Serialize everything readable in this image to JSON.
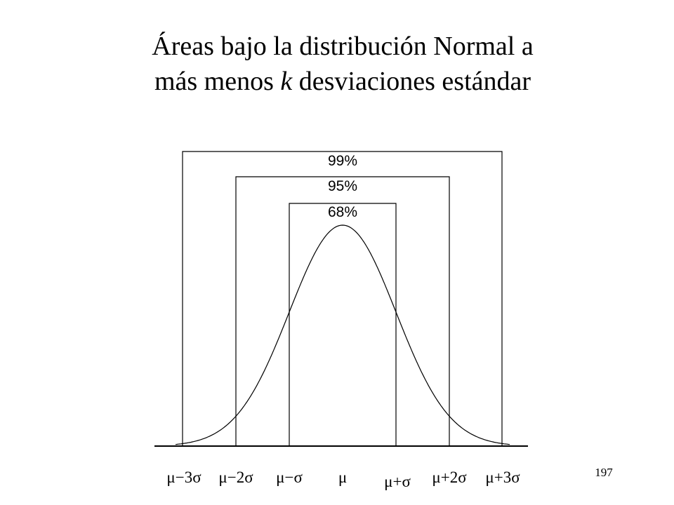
{
  "title": {
    "line1": "Áreas bajo la distribución Normal a",
    "line2_start": "más menos ",
    "line2_italic": "k",
    "line2_end": " desviaciones estándar"
  },
  "areas": [
    "99%",
    "95%",
    "68%"
  ],
  "axis_labels": [
    "μ−3σ",
    "μ−2σ",
    "μ−σ",
    "μ",
    "μ+σ",
    "μ+2σ",
    "μ+3σ"
  ],
  "page_number": "197"
}
